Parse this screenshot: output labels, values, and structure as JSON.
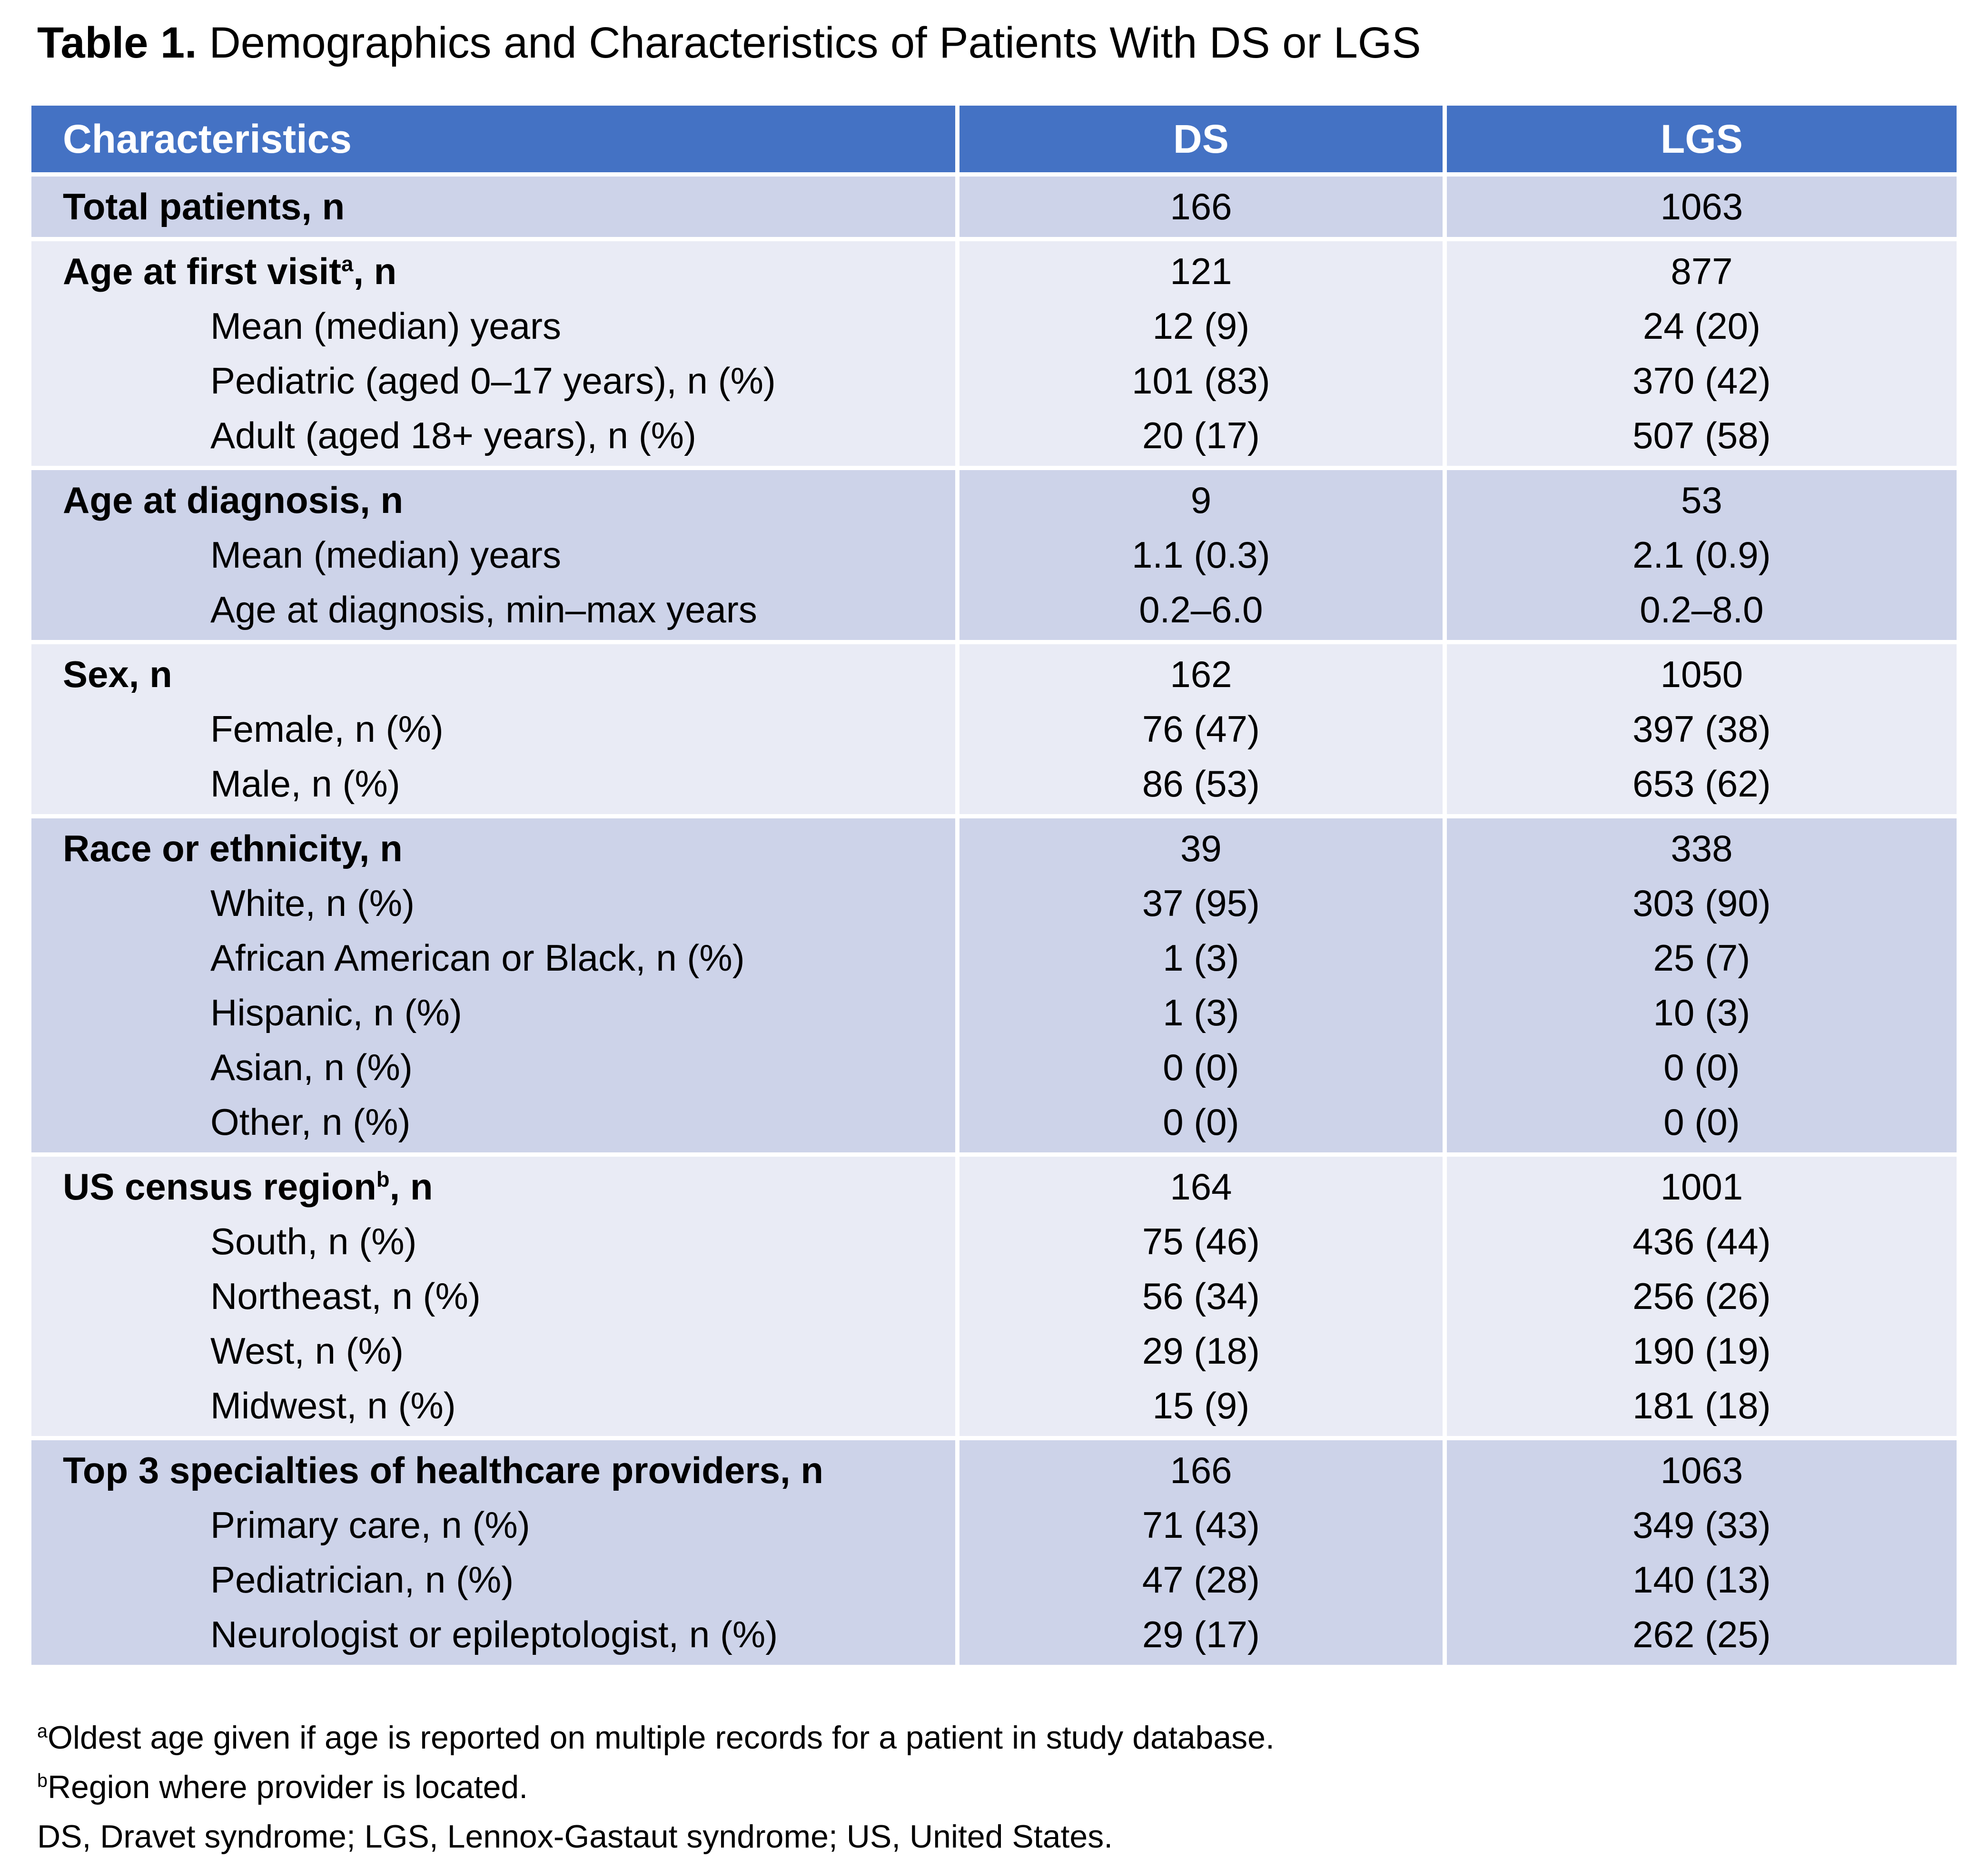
{
  "title": {
    "label": "Table 1.",
    "text": "Demographics and Characteristics of Patients With DS or LGS"
  },
  "colors": {
    "header_bg": "#4472C4",
    "header_text": "#FFFFFF",
    "band_dark": "#CDD3E9",
    "band_light": "#E9EBF5",
    "body_text": "#000000",
    "page_bg": "#FFFFFF"
  },
  "table": {
    "columns": [
      {
        "label": "Characteristics",
        "align": "left"
      },
      {
        "label": "DS",
        "align": "center"
      },
      {
        "label": "LGS",
        "align": "center"
      }
    ],
    "sections": [
      {
        "rows": [
          {
            "label": "Total patients, n",
            "sup": "",
            "after": "",
            "bold": true,
            "indent": false,
            "ds": "166",
            "lgs": "1063"
          }
        ]
      },
      {
        "rows": [
          {
            "label": "Age at first visit",
            "sup": "a",
            "after": ", n",
            "bold": true,
            "indent": false,
            "ds": "121",
            "lgs": "877"
          },
          {
            "label": "Mean (median) years",
            "sup": "",
            "after": "",
            "bold": false,
            "indent": true,
            "ds": "12 (9)",
            "lgs": "24 (20)"
          },
          {
            "label": "Pediatric (aged 0–17 years), n (%)",
            "sup": "",
            "after": "",
            "bold": false,
            "indent": true,
            "ds": "101 (83)",
            "lgs": "370 (42)"
          },
          {
            "label": "Adult (aged 18+ years), n (%)",
            "sup": "",
            "after": "",
            "bold": false,
            "indent": true,
            "ds": "20 (17)",
            "lgs": "507 (58)"
          }
        ]
      },
      {
        "rows": [
          {
            "label": "Age at diagnosis, n",
            "sup": "",
            "after": "",
            "bold": true,
            "indent": false,
            "ds": "9",
            "lgs": "53"
          },
          {
            "label": "Mean (median) years",
            "sup": "",
            "after": "",
            "bold": false,
            "indent": true,
            "ds": "1.1 (0.3)",
            "lgs": "2.1 (0.9)"
          },
          {
            "label": "Age at diagnosis, min–max years",
            "sup": "",
            "after": "",
            "bold": false,
            "indent": true,
            "ds": "0.2–6.0",
            "lgs": "0.2–8.0"
          }
        ]
      },
      {
        "rows": [
          {
            "label": "Sex, n",
            "sup": "",
            "after": "",
            "bold": true,
            "indent": false,
            "ds": "162",
            "lgs": "1050"
          },
          {
            "label": "Female, n (%)",
            "sup": "",
            "after": "",
            "bold": false,
            "indent": true,
            "ds": "76 (47)",
            "lgs": "397 (38)"
          },
          {
            "label": "Male, n (%)",
            "sup": "",
            "after": "",
            "bold": false,
            "indent": true,
            "ds": "86 (53)",
            "lgs": "653 (62)"
          }
        ]
      },
      {
        "rows": [
          {
            "label": "Race or ethnicity, n",
            "sup": "",
            "after": "",
            "bold": true,
            "indent": false,
            "ds": "39",
            "lgs": "338"
          },
          {
            "label": "White, n (%)",
            "sup": "",
            "after": "",
            "bold": false,
            "indent": true,
            "ds": "37 (95)",
            "lgs": "303 (90)"
          },
          {
            "label": "African American or Black, n (%)",
            "sup": "",
            "after": "",
            "bold": false,
            "indent": true,
            "ds": "1 (3)",
            "lgs": "25 (7)"
          },
          {
            "label": "Hispanic, n (%)",
            "sup": "",
            "after": "",
            "bold": false,
            "indent": true,
            "ds": "1 (3)",
            "lgs": "10 (3)"
          },
          {
            "label": "Asian, n (%)",
            "sup": "",
            "after": "",
            "bold": false,
            "indent": true,
            "ds": "0 (0)",
            "lgs": "0 (0)"
          },
          {
            "label": "Other, n (%)",
            "sup": "",
            "after": "",
            "bold": false,
            "indent": true,
            "ds": "0 (0)",
            "lgs": "0 (0)"
          }
        ]
      },
      {
        "rows": [
          {
            "label": "US census region",
            "sup": "b",
            "after": ", n",
            "bold": true,
            "indent": false,
            "ds": "164",
            "lgs": "1001"
          },
          {
            "label": "South, n (%)",
            "sup": "",
            "after": "",
            "bold": false,
            "indent": true,
            "ds": "75 (46)",
            "lgs": "436 (44)"
          },
          {
            "label": "Northeast, n (%)",
            "sup": "",
            "after": "",
            "bold": false,
            "indent": true,
            "ds": "56 (34)",
            "lgs": "256 (26)"
          },
          {
            "label": "West, n (%)",
            "sup": "",
            "after": "",
            "bold": false,
            "indent": true,
            "ds": "29 (18)",
            "lgs": "190 (19)"
          },
          {
            "label": "Midwest, n (%)",
            "sup": "",
            "after": "",
            "bold": false,
            "indent": true,
            "ds": "15 (9)",
            "lgs": "181 (18)"
          }
        ]
      },
      {
        "rows": [
          {
            "label": "Top 3 specialties of healthcare providers, n",
            "sup": "",
            "after": "",
            "bold": true,
            "indent": false,
            "ds": "166",
            "lgs": "1063"
          },
          {
            "label": "Primary care, n (%)",
            "sup": "",
            "after": "",
            "bold": false,
            "indent": true,
            "ds": "71 (43)",
            "lgs": "349 (33)"
          },
          {
            "label": "Pediatrician, n (%)",
            "sup": "",
            "after": "",
            "bold": false,
            "indent": true,
            "ds": "47 (28)",
            "lgs": "140 (13)"
          },
          {
            "label": "Neurologist or epileptologist, n (%)",
            "sup": "",
            "after": "",
            "bold": false,
            "indent": true,
            "ds": "29 (17)",
            "lgs": "262 (25)"
          }
        ]
      }
    ]
  },
  "footnotes": [
    {
      "sup": "a",
      "text": "Oldest age given if age is reported on multiple records for a patient in study database."
    },
    {
      "sup": "b",
      "text": "Region where provider is located."
    },
    {
      "sup": "",
      "text": "DS, Dravet syndrome; LGS, Lennox-Gastaut syndrome; US, United States."
    }
  ]
}
